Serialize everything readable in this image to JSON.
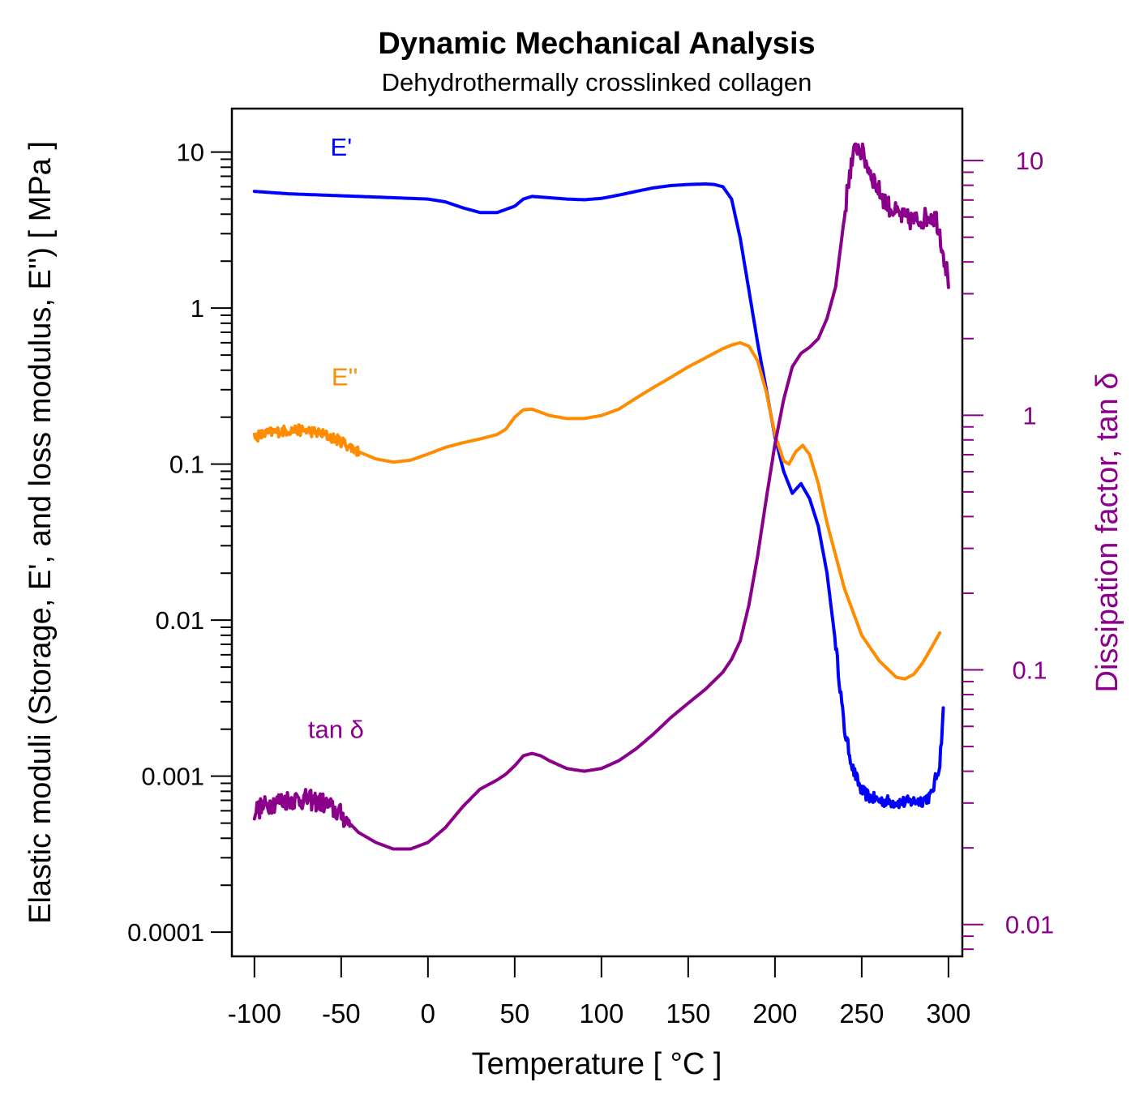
{
  "chart_data": {
    "type": "line",
    "title": "Dynamic Mechanical Analysis",
    "subtitle": "Dehydrothermally crosslinked collagen",
    "xlabel": "Temperature [ °C ]",
    "ylabel": "Elastic moduli (Storage, E', and loss modulus, E'') [ MPa ]",
    "ylabel_right": "Dissipation factor, tan δ",
    "xlim": [
      -113,
      308
    ],
    "ylim": [
      7e-05,
      19
    ],
    "ylim_right": [
      0.0075,
      16
    ],
    "yscale": "log",
    "yscale_right": "log",
    "grid": false,
    "xticks": [
      -100,
      -50,
      0,
      50,
      100,
      150,
      200,
      250,
      300
    ],
    "xtick_labels": [
      "-100",
      "-50",
      "0",
      "50",
      "100",
      "150",
      "200",
      "250",
      "300"
    ],
    "yticks": [
      0.0001,
      0.001,
      0.01,
      0.1,
      1,
      10
    ],
    "ytick_labels": [
      "0.0001",
      "0.001",
      "0.01",
      "0.1",
      "1",
      "10"
    ],
    "yticks_right": [
      0.01,
      0.1,
      1,
      10
    ],
    "ytick_labels_right": [
      "0.01",
      "0.1",
      "1",
      "10"
    ],
    "series": [
      {
        "name": "E'",
        "axis": "left",
        "color": "#0000ff",
        "label_at": [
          -50,
          9.5
        ],
        "x": [
          -100,
          -80,
          -60,
          -40,
          -20,
          0,
          10,
          20,
          30,
          40,
          50,
          55,
          60,
          70,
          80,
          90,
          100,
          110,
          120,
          130,
          140,
          150,
          160,
          165,
          170,
          175,
          180,
          185,
          190,
          195,
          200,
          205,
          210,
          215,
          220,
          225,
          230,
          235,
          240,
          245,
          250,
          255,
          260,
          265,
          270,
          275,
          280,
          285,
          290,
          295,
          297
        ],
        "y": [
          5.6,
          5.4,
          5.3,
          5.2,
          5.1,
          5.0,
          4.8,
          4.4,
          4.1,
          4.1,
          4.5,
          5.0,
          5.2,
          5.1,
          5.0,
          4.95,
          5.05,
          5.3,
          5.6,
          5.9,
          6.1,
          6.2,
          6.25,
          6.2,
          6.0,
          5.0,
          2.8,
          1.3,
          0.6,
          0.3,
          0.15,
          0.09,
          0.065,
          0.075,
          0.06,
          0.04,
          0.02,
          0.007,
          0.002,
          0.0011,
          0.0008,
          0.00073,
          0.0007,
          0.00069,
          0.00068,
          0.00068,
          0.00069,
          0.0007,
          0.00075,
          0.0012,
          0.0026
        ],
        "noise_from": 235,
        "noise": 0.04
      },
      {
        "name": "E''",
        "axis": "left",
        "color": "#ff8c00",
        "label_at": [
          -48,
          0.32
        ],
        "x": [
          -100,
          -90,
          -80,
          -70,
          -60,
          -50,
          -40,
          -30,
          -20,
          -10,
          0,
          10,
          20,
          30,
          40,
          45,
          50,
          55,
          60,
          65,
          70,
          80,
          90,
          100,
          110,
          120,
          130,
          140,
          150,
          160,
          170,
          175,
          180,
          185,
          190,
          195,
          200,
          205,
          208,
          212,
          216,
          220,
          225,
          230,
          240,
          250,
          260,
          270,
          275,
          280,
          285,
          290,
          295
        ],
        "y": [
          0.15,
          0.16,
          0.165,
          0.165,
          0.155,
          0.14,
          0.12,
          0.108,
          0.103,
          0.106,
          0.116,
          0.128,
          0.137,
          0.145,
          0.155,
          0.168,
          0.2,
          0.223,
          0.225,
          0.215,
          0.205,
          0.196,
          0.196,
          0.205,
          0.225,
          0.265,
          0.31,
          0.36,
          0.42,
          0.48,
          0.55,
          0.58,
          0.6,
          0.57,
          0.46,
          0.29,
          0.155,
          0.105,
          0.1,
          0.12,
          0.132,
          0.115,
          0.075,
          0.042,
          0.016,
          0.008,
          0.0055,
          0.0043,
          0.0042,
          0.0045,
          0.0053,
          0.0066,
          0.0083
        ],
        "noise_to": -40,
        "noise": 0.035
      },
      {
        "name": "tan δ",
        "axis": "right",
        "color": "#8b008b",
        "label_at": [
          -53,
          0.054
        ],
        "x": [
          -100,
          -90,
          -80,
          -70,
          -60,
          -50,
          -40,
          -30,
          -20,
          -10,
          0,
          10,
          20,
          30,
          40,
          45,
          50,
          55,
          60,
          65,
          70,
          80,
          90,
          100,
          110,
          120,
          130,
          140,
          150,
          160,
          170,
          175,
          180,
          185,
          190,
          195,
          200,
          205,
          210,
          215,
          220,
          225,
          230,
          235,
          240,
          243,
          247,
          250,
          255,
          260,
          265,
          270,
          275,
          280,
          285,
          290,
          293,
          295,
          298,
          300
        ],
        "y": [
          0.028,
          0.03,
          0.031,
          0.031,
          0.03,
          0.027,
          0.023,
          0.021,
          0.0198,
          0.0198,
          0.021,
          0.024,
          0.029,
          0.034,
          0.037,
          0.039,
          0.042,
          0.046,
          0.047,
          0.046,
          0.044,
          0.041,
          0.04,
          0.041,
          0.044,
          0.049,
          0.056,
          0.065,
          0.074,
          0.084,
          0.098,
          0.11,
          0.13,
          0.18,
          0.28,
          0.47,
          0.77,
          1.15,
          1.55,
          1.75,
          1.85,
          2.0,
          2.4,
          3.2,
          6.0,
          9.0,
          11.5,
          10.8,
          9.0,
          7.6,
          6.7,
          6.2,
          5.9,
          5.8,
          5.9,
          6.1,
          5.9,
          5.2,
          4.0,
          3.4
        ],
        "noise_to": -45,
        "noise_from": 240,
        "noise": 0.04
      }
    ]
  }
}
